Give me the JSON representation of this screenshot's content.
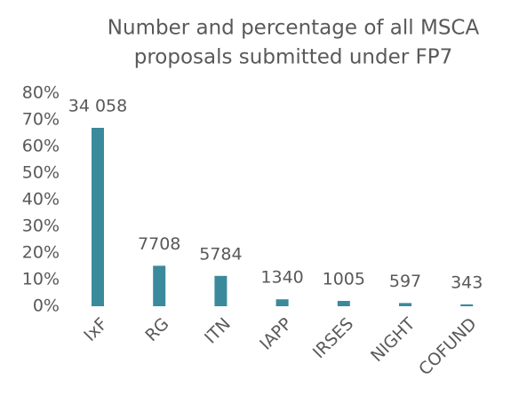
{
  "chart_data": {
    "type": "bar",
    "title": [
      "Number and percentage of all MSCA",
      "proposals submitted under FP7"
    ],
    "categories": [
      "IxF",
      "RG",
      "ITN",
      "IAPP",
      "IRSES",
      "NIGHT",
      "COFUND"
    ],
    "values": [
      67.0,
      15.2,
      11.4,
      2.6,
      2.0,
      1.2,
      0.7
    ],
    "data_labels": [
      {
        "value": 34058,
        "label": "34 058"
      },
      7708,
      5784,
      1340,
      1005,
      597,
      343
    ],
    "color": "#3a8a9c",
    "ylim": [
      0,
      80
    ],
    "yticks": [
      {
        "value": 0,
        "label": "0%"
      },
      {
        "value": 10,
        "label": "10%"
      },
      {
        "value": 20,
        "label": "20%"
      },
      {
        "value": 30,
        "label": "30%"
      },
      {
        "value": 40,
        "label": "40%"
      },
      {
        "value": 50,
        "label": "50%"
      },
      {
        "value": 60,
        "label": "60%"
      },
      {
        "value": 70,
        "label": "70%"
      },
      {
        "value": 80,
        "label": "80%"
      }
    ],
    "grid": false
  }
}
